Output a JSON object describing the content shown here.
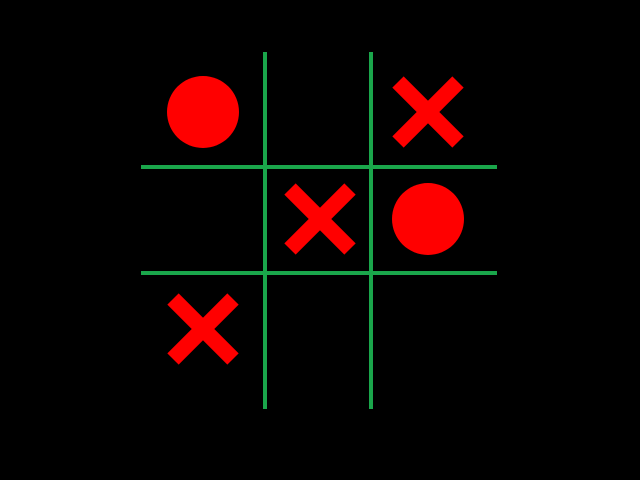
{
  "game": {
    "type": "tic-tac-toe",
    "board": [
      [
        "O",
        "",
        "X"
      ],
      [
        "",
        "X",
        "O"
      ],
      [
        "X",
        "",
        ""
      ]
    ]
  },
  "colors": {
    "background": "#000000",
    "grid": "#1aa64b",
    "pieces": "#ff0000"
  },
  "icons": {
    "X": "cross-icon",
    "O": "circle-icon"
  }
}
